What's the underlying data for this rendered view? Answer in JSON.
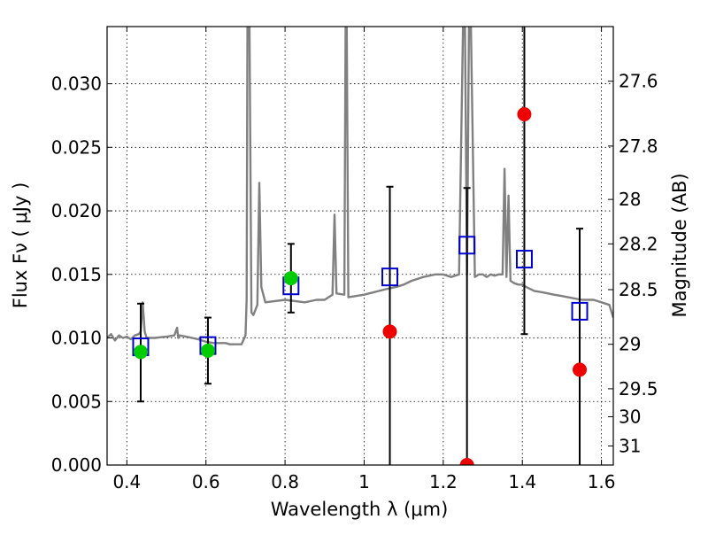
{
  "chart_data": {
    "type": "scatter",
    "xlabel": "Wavelength  λ (μm)",
    "ylabel": "Flux  Fν  ( μJy )",
    "ylabel_right": "Magnitude (AB)",
    "xlim": [
      0.35,
      1.63
    ],
    "ylim": [
      0.0,
      0.0345
    ],
    "x_ticks": [
      0.4,
      0.6,
      0.8,
      1.0,
      1.2,
      1.4,
      1.6
    ],
    "x_tick_labels": [
      "0.4",
      "0.6",
      "0.8",
      "1",
      "1.2",
      "1.4",
      "1.6"
    ],
    "y_ticks": [
      0.0,
      0.005,
      0.01,
      0.015,
      0.02,
      0.025,
      0.03
    ],
    "y_tick_labels": [
      "0.000",
      "0.005",
      "0.010",
      "0.015",
      "0.020",
      "0.025",
      "0.030"
    ],
    "right_tick_flux": [
      0.0302,
      0.0251,
      0.0209,
      0.0174,
      0.0138,
      0.0095,
      0.006,
      0.0038,
      0.0015
    ],
    "right_tick_labels": [
      "27.6",
      "27.8",
      "28",
      "28.2",
      "28.5",
      "29",
      "29.5",
      "30",
      "31"
    ],
    "grid": true,
    "colors": {
      "template": "#808080",
      "model_squares": "#0000cc",
      "detections": "#00cc00",
      "limits": "#ee0000",
      "errorbars": "#000000"
    },
    "template_spectrum": {
      "x": [
        0.35,
        0.36,
        0.37,
        0.38,
        0.39,
        0.4,
        0.41,
        0.42,
        0.43,
        0.435,
        0.44,
        0.445,
        0.45,
        0.47,
        0.5,
        0.52,
        0.527,
        0.53,
        0.533,
        0.55,
        0.58,
        0.6,
        0.62,
        0.65,
        0.66,
        0.67,
        0.69,
        0.7,
        0.703,
        0.705,
        0.71,
        0.715,
        0.72,
        0.73,
        0.735,
        0.74,
        0.75,
        0.8,
        0.85,
        0.88,
        0.9,
        0.92,
        0.925,
        0.93,
        0.95,
        0.953,
        0.956,
        0.96,
        1.0,
        1.05,
        1.08,
        1.1,
        1.12,
        1.15,
        1.18,
        1.2,
        1.22,
        1.24,
        1.25,
        1.255,
        1.26,
        1.265,
        1.27,
        1.28,
        1.29,
        1.3,
        1.31,
        1.32,
        1.33,
        1.34,
        1.35,
        1.355,
        1.36,
        1.365,
        1.37,
        1.38,
        1.39,
        1.4,
        1.41,
        1.43,
        1.45,
        1.48,
        1.5,
        1.55,
        1.58,
        1.6,
        1.62,
        1.63
      ],
      "y": [
        0.01,
        0.0103,
        0.0098,
        0.0102,
        0.01,
        0.0101,
        0.0099,
        0.0102,
        0.0103,
        0.0105,
        0.0128,
        0.0105,
        0.01,
        0.01,
        0.0101,
        0.0102,
        0.0108,
        0.01,
        0.0102,
        0.0101,
        0.0099,
        0.0097,
        0.0096,
        0.0096,
        0.0095,
        0.0095,
        0.0095,
        0.0102,
        0.013,
        0.0345,
        0.0345,
        0.012,
        0.0118,
        0.0126,
        0.0222,
        0.014,
        0.0128,
        0.013,
        0.0128,
        0.013,
        0.013,
        0.0134,
        0.0197,
        0.0135,
        0.0134,
        0.0345,
        0.0345,
        0.0132,
        0.0134,
        0.0138,
        0.014,
        0.0142,
        0.0145,
        0.0148,
        0.015,
        0.015,
        0.0148,
        0.015,
        0.0345,
        0.0345,
        0.015,
        0.0345,
        0.0345,
        0.0148,
        0.015,
        0.015,
        0.0148,
        0.015,
        0.0149,
        0.015,
        0.015,
        0.0233,
        0.0148,
        0.0212,
        0.0145,
        0.0143,
        0.0142,
        0.0142,
        0.014,
        0.0137,
        0.0136,
        0.0134,
        0.0133,
        0.013,
        0.013,
        0.0128,
        0.0126,
        0.0116
      ]
    },
    "model_squares": {
      "x": [
        0.435,
        0.605,
        0.815,
        1.065,
        1.26,
        1.405,
        1.545
      ],
      "y": [
        0.0093,
        0.0094,
        0.0141,
        0.0148,
        0.0173,
        0.0162,
        0.0121
      ]
    },
    "detections": {
      "x": [
        0.435,
        0.605,
        0.815
      ],
      "y": [
        0.0089,
        0.009,
        0.0147
      ],
      "yerr_low": [
        0.005,
        0.0064,
        0.012
      ],
      "yerr_high": [
        0.0127,
        0.0116,
        0.0174
      ]
    },
    "limits": {
      "x": [
        1.065,
        1.26,
        1.405,
        1.545
      ],
      "y": [
        0.0105,
        0.0,
        0.0276,
        0.0075
      ],
      "yerr_low": [
        0.0,
        0.0,
        0.0103,
        0.0
      ],
      "yerr_high": [
        0.0219,
        0.0218,
        0.0345,
        0.0186
      ]
    }
  }
}
